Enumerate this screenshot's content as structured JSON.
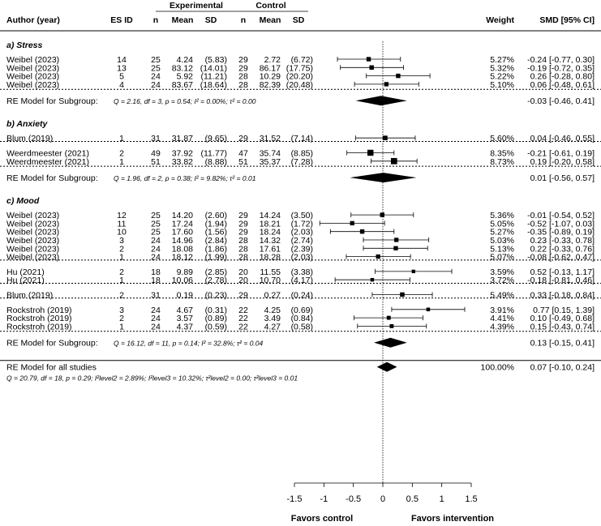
{
  "header": {
    "author": "Author (year)",
    "es_id": "ES ID",
    "experimental": "Experimental",
    "control": "Control",
    "n": "n",
    "mean": "Mean",
    "sd": "SD",
    "weight": "Weight",
    "smd": "SMD [95% CI]"
  },
  "chart_data": {
    "type": "forest",
    "xlim": [
      -1.5,
      1.5
    ],
    "xticks": [
      "-1.5",
      "-1",
      "-0.5",
      "0",
      "0.5",
      "1",
      "1.5"
    ],
    "xlabel_left": "Favors control",
    "xlabel_right": "Favors intervention",
    "subgroups": [
      {
        "title": "a) Stress",
        "groups": [
          [
            {
              "author": "Weibel (2023)",
              "es_id": "14",
              "n_e": "25",
              "mean_e": "4.24",
              "sd_e": "(5.83)",
              "n_c": "29",
              "mean_c": "2.72",
              "sd_c": "(6.72)",
              "weight": "5.27%",
              "smd_text": "-0.24 [-0.77, 0.30]",
              "smd": -0.24,
              "lo": -0.77,
              "hi": 0.3
            },
            {
              "author": "Weibel (2023)",
              "es_id": "13",
              "n_e": "25",
              "mean_e": "83.12",
              "sd_e": "(14.01)",
              "n_c": "29",
              "mean_c": "86.17",
              "sd_c": "(17.75)",
              "weight": "5.32%",
              "smd_text": "-0.19 [-0.72, 0.35]",
              "smd": -0.19,
              "lo": -0.72,
              "hi": 0.35
            },
            {
              "author": "Weibel (2023)",
              "es_id": "5",
              "n_e": "24",
              "mean_e": "5.92",
              "sd_e": "(11.21)",
              "n_c": "28",
              "mean_c": "10.29",
              "sd_c": "(20.20)",
              "weight": "5.22%",
              "smd_text": "0.26 [-0.28, 0.80]",
              "smd": 0.26,
              "lo": -0.28,
              "hi": 0.8
            },
            {
              "author": "Weibel (2023)",
              "es_id": "4",
              "n_e": "24",
              "mean_e": "83.67",
              "sd_e": "(18.64)",
              "n_c": "28",
              "mean_c": "82.39",
              "sd_c": "(20.48)",
              "weight": "5.10%",
              "smd_text": "0.06 [-0.48, 0.61]",
              "smd": 0.06,
              "lo": -0.48,
              "hi": 0.61
            }
          ]
        ],
        "model_label": "RE Model for Subgroup:",
        "model_stats": "Q = 2.16, df = 3, p = 0.54; I² = 0.00%; τ² = 0.00",
        "model_smd_text": "-0.03 [-0.46, 0.41]",
        "model_smd": -0.03,
        "model_lo": -0.46,
        "model_hi": 0.41
      },
      {
        "title": "b) Anxiety",
        "groups": [
          [
            {
              "author": "Blum (2019)",
              "es_id": "1",
              "n_e": "31",
              "mean_e": "31.87",
              "sd_e": "(9.65)",
              "n_c": "29",
              "mean_c": "31.52",
              "sd_c": "(7.14)",
              "weight": "5.60%",
              "smd_text": "0.04 [-0.46, 0.55]",
              "smd": 0.04,
              "lo": -0.46,
              "hi": 0.55
            }
          ],
          [
            {
              "author": "Weerdmeester (2021)",
              "es_id": "2",
              "n_e": "49",
              "mean_e": "37.92",
              "sd_e": "(11.77)",
              "n_c": "47",
              "mean_c": "35.74",
              "sd_c": "(8.85)",
              "weight": "8.35%",
              "smd_text": "-0.21 [-0.61, 0.19]",
              "smd": -0.21,
              "lo": -0.61,
              "hi": 0.19
            },
            {
              "author": "Weerdmeester (2021)",
              "es_id": "1",
              "n_e": "51",
              "mean_e": "33.82",
              "sd_e": "(8.88)",
              "n_c": "51",
              "mean_c": "35.37",
              "sd_c": "(7.28)",
              "weight": "8.73%",
              "smd_text": "0.19 [-0.20, 0.58]",
              "smd": 0.19,
              "lo": -0.2,
              "hi": 0.58
            }
          ]
        ],
        "model_label": "RE Model for Subgroup:",
        "model_stats": "Q = 1.96, df = 2, p = 0.38; I² = 9.82%; τ² = 0.01",
        "model_smd_text": "0.01 [-0.56, 0.57]",
        "model_smd": 0.01,
        "model_lo": -0.56,
        "model_hi": 0.57
      },
      {
        "title": "c) Mood",
        "groups": [
          [
            {
              "author": "Weibel (2023)",
              "es_id": "12",
              "n_e": "25",
              "mean_e": "14.20",
              "sd_e": "(2.60)",
              "n_c": "29",
              "mean_c": "14.24",
              "sd_c": "(3.50)",
              "weight": "5.36%",
              "smd_text": "-0.01 [-0.54, 0.52]",
              "smd": -0.01,
              "lo": -0.54,
              "hi": 0.52
            },
            {
              "author": "Weibel (2023)",
              "es_id": "11",
              "n_e": "25",
              "mean_e": "17.24",
              "sd_e": "(1.94)",
              "n_c": "29",
              "mean_c": "18.21",
              "sd_c": "(1.72)",
              "weight": "5.05%",
              "smd_text": "-0.52 [-1.07, 0.03]",
              "smd": -0.52,
              "lo": -1.07,
              "hi": 0.03
            },
            {
              "author": "Weibel (2023)",
              "es_id": "10",
              "n_e": "25",
              "mean_e": "17.60",
              "sd_e": "(1.56)",
              "n_c": "29",
              "mean_c": "18.24",
              "sd_c": "(2.03)",
              "weight": "5.27%",
              "smd_text": "-0.35 [-0.89, 0.19]",
              "smd": -0.35,
              "lo": -0.89,
              "hi": 0.19
            },
            {
              "author": "Weibel (2023)",
              "es_id": "3",
              "n_e": "24",
              "mean_e": "14.96",
              "sd_e": "(2.84)",
              "n_c": "28",
              "mean_c": "14.32",
              "sd_c": "(2.74)",
              "weight": "5.03%",
              "smd_text": "0.23 [-0.33, 0.78]",
              "smd": 0.23,
              "lo": -0.33,
              "hi": 0.78
            },
            {
              "author": "Weibel (2023)",
              "es_id": "2",
              "n_e": "24",
              "mean_e": "18.08",
              "sd_e": "(1.86)",
              "n_c": "28",
              "mean_c": "17.61",
              "sd_c": "(2.39)",
              "weight": "5.13%",
              "smd_text": "0.22 [-0.33, 0.76]",
              "smd": 0.22,
              "lo": -0.33,
              "hi": 0.76
            },
            {
              "author": "Weibel (2023)",
              "es_id": "1",
              "n_e": "24",
              "mean_e": "18.12",
              "sd_e": "(1.99)",
              "n_c": "28",
              "mean_c": "18.28",
              "sd_c": "(2.03)",
              "weight": "5.07%",
              "smd_text": "-0.08 [-0.62, 0.47]",
              "smd": -0.08,
              "lo": -0.62,
              "hi": 0.47
            }
          ],
          [
            {
              "author": "Hu (2021)",
              "es_id": "2",
              "n_e": "18",
              "mean_e": "9.89",
              "sd_e": "(2.85)",
              "n_c": "20",
              "mean_c": "11.55",
              "sd_c": "(3.38)",
              "weight": "3.59%",
              "smd_text": "0.52 [-0.13, 1.17]",
              "smd": 0.52,
              "lo": -0.13,
              "hi": 1.17
            },
            {
              "author": "Hu (2021)",
              "es_id": "1",
              "n_e": "18",
              "mean_e": "10.06",
              "sd_e": "(2.78)",
              "n_c": "20",
              "mean_c": "10.70",
              "sd_c": "(4.17)",
              "weight": "3.72%",
              "smd_text": "-0.18 [-0.81, 0.46]",
              "smd": -0.18,
              "lo": -0.81,
              "hi": 0.46
            }
          ],
          [
            {
              "author": "Blum (2019)",
              "es_id": "2",
              "n_e": "31",
              "mean_e": "0.19",
              "sd_e": "(0.23)",
              "n_c": "29",
              "mean_c": "0.27",
              "sd_c": "(0.24)",
              "weight": "5.49%",
              "smd_text": "0.33 [-0.18, 0.84]",
              "smd": 0.33,
              "lo": -0.18,
              "hi": 0.84
            }
          ],
          [
            {
              "author": "Rockstroh (2019)",
              "es_id": "3",
              "n_e": "24",
              "mean_e": "4.67",
              "sd_e": "(0.31)",
              "n_c": "22",
              "mean_c": "4.25",
              "sd_c": "(0.69)",
              "weight": "3.91%",
              "smd_text": "0.77 [0.15, 1.39]",
              "smd": 0.77,
              "lo": 0.15,
              "hi": 1.39
            },
            {
              "author": "Rockstroh (2019)",
              "es_id": "2",
              "n_e": "24",
              "mean_e": "3.57",
              "sd_e": "(0.89)",
              "n_c": "22",
              "mean_c": "3.49",
              "sd_c": "(0.84)",
              "weight": "4.41%",
              "smd_text": "0.10 [-0.49, 0.68]",
              "smd": 0.1,
              "lo": -0.49,
              "hi": 0.68
            },
            {
              "author": "Rockstroh (2019)",
              "es_id": "1",
              "n_e": "24",
              "mean_e": "4.37",
              "sd_e": "(0.59)",
              "n_c": "22",
              "mean_c": "4.27",
              "sd_c": "(0.58)",
              "weight": "4.39%",
              "smd_text": "0.15 [-0.43, 0.74]",
              "smd": 0.15,
              "lo": -0.43,
              "hi": 0.74
            }
          ]
        ],
        "model_label": "RE Model for Subgroup:",
        "model_stats": "Q = 16.12, df = 11, p = 0.14; I² = 32.8%; τ² = 0.04",
        "model_smd_text": "0.13 [-0.15, 0.41]",
        "model_smd": 0.13,
        "model_lo": -0.15,
        "model_hi": 0.41
      }
    ],
    "overall": {
      "label": "RE Model for all studies",
      "stats": "Q = 20.79, df = 18, p = 0.29; I²level2 = 2.89%; I²level3 = 10.32%; τ²level2 = 0.00; τ²level3 = 0.01",
      "weight": "100.00%",
      "smd_text": "0.07 [-0.10, 0.24]",
      "smd": 0.07,
      "lo": -0.1,
      "hi": 0.24
    }
  }
}
